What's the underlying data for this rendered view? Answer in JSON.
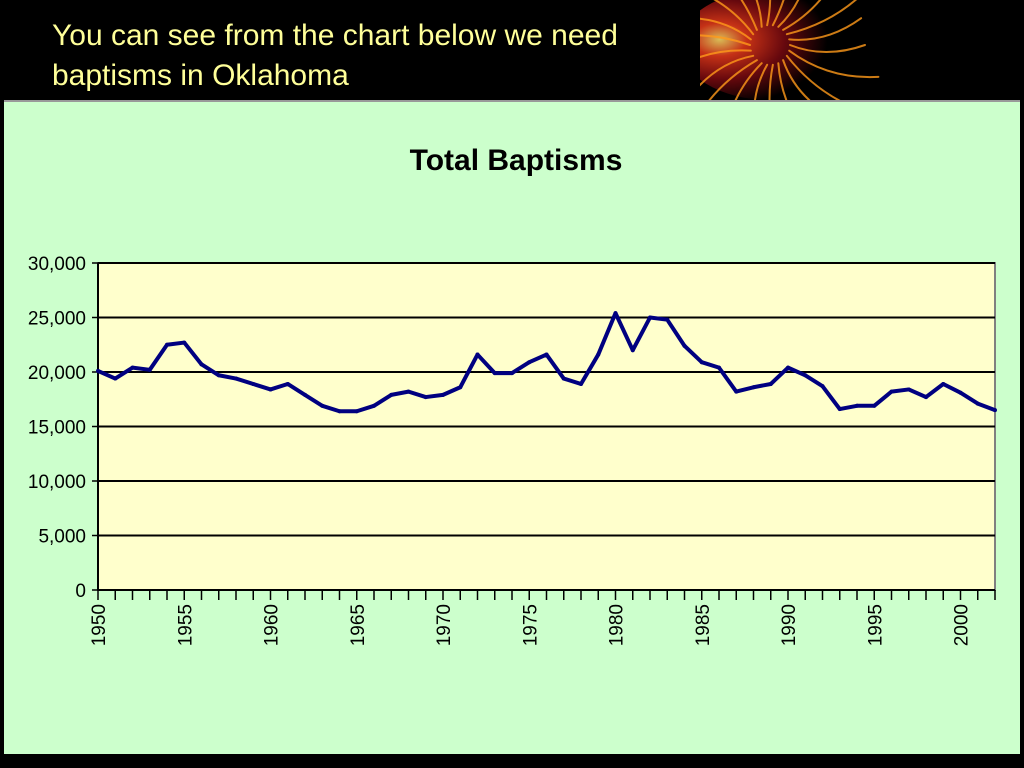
{
  "slide": {
    "title": "You can see from the chart below we need baptisms in Oklahoma"
  },
  "colors": {
    "background": "#000000",
    "title_text": "#ffff99",
    "panel": "#ccffcc",
    "plot_area": "#ffffcc",
    "line": "#000080"
  },
  "chart_data": {
    "type": "line",
    "title": "Total Baptisms",
    "xlabel": "",
    "ylabel": "",
    "ylim": [
      0,
      30000
    ],
    "yticks": [
      "0",
      "5,000",
      "10,000",
      "15,000",
      "20,000",
      "25,000",
      "30,000"
    ],
    "xtick_labels": [
      "1950",
      "1955",
      "1960",
      "1965",
      "1970",
      "1975",
      "1980",
      "1985",
      "1990",
      "1995",
      "2000"
    ],
    "grid": true,
    "legend": "none",
    "x": [
      1950,
      1951,
      1952,
      1953,
      1954,
      1955,
      1956,
      1957,
      1958,
      1959,
      1960,
      1961,
      1962,
      1963,
      1964,
      1965,
      1966,
      1967,
      1968,
      1969,
      1970,
      1971,
      1972,
      1973,
      1974,
      1975,
      1976,
      1977,
      1978,
      1979,
      1980,
      1981,
      1982,
      1983,
      1984,
      1985,
      1986,
      1987,
      1988,
      1989,
      1990,
      1991,
      1992,
      1993,
      1994,
      1995,
      1996,
      1997,
      1998,
      1999,
      2000,
      2001,
      2002
    ],
    "series": [
      {
        "values": [
          20100,
          19400,
          20400,
          20200,
          22500,
          22700,
          20700,
          19700,
          19400,
          18900,
          18400,
          18900,
          17900,
          16900,
          16400,
          16400,
          16900,
          17900,
          18200,
          17700,
          17900,
          18600,
          21600,
          19900,
          19900,
          20900,
          21600,
          19400,
          18900,
          21600,
          25400,
          22000,
          25000,
          24800,
          22400,
          20900,
          20400,
          18200,
          18600,
          18900,
          20400,
          19700,
          18700,
          16600,
          16900,
          16900,
          18200,
          18400,
          17700,
          18900,
          18100,
          17100,
          16500
        ]
      }
    ]
  }
}
